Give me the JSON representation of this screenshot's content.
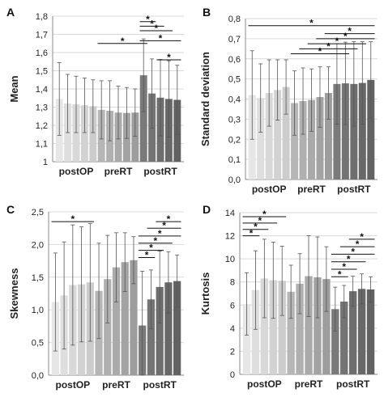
{
  "chart_data": [
    {
      "type": "bar",
      "panel_label": "A",
      "ylabel": "Mean",
      "ylim": [
        1.0,
        1.8
      ],
      "yticks": [
        1.0,
        1.1,
        1.2,
        1.3,
        1.4,
        1.5,
        1.6,
        1.7,
        1.8
      ],
      "tick_labels": [
        "1",
        "1,1",
        "1,2",
        "1,3",
        "1,4",
        "1,5",
        "1,6",
        "1,7",
        "1,8"
      ],
      "grid": true,
      "groups": [
        "postOP",
        "preRT",
        "postRT"
      ],
      "bars_per_group": 5,
      "values": [
        1.345,
        1.32,
        1.315,
        1.31,
        1.305,
        1.285,
        1.28,
        1.27,
        1.268,
        1.27,
        1.475,
        1.375,
        1.352,
        1.345,
        1.34
      ],
      "errors": [
        0.2,
        0.16,
        0.155,
        0.15,
        0.145,
        0.16,
        0.165,
        0.145,
        0.14,
        0.13,
        0.2,
        0.19,
        0.21,
        0.21,
        0.19
      ],
      "bar_colors": [
        "#e6e6e6",
        "#dedede",
        "#d8d8d8",
        "#d2d2d2",
        "#cccccc",
        "#b6b6b6",
        "#b0b0b0",
        "#aaaaaa",
        "#a3a3a3",
        "#9d9d9d",
        "#7a7a7a",
        "#747474",
        "#6e6e6e",
        "#686868",
        "#626262"
      ],
      "significance": [
        {
          "from": 5,
          "to": 10,
          "y": 1.65,
          "label": "*"
        },
        {
          "from": 10,
          "to": 11,
          "y": 1.77,
          "label": "*"
        },
        {
          "from": 10,
          "to": 12,
          "y": 1.745,
          "label": "*"
        },
        {
          "from": 10,
          "to": 13,
          "y": 1.72,
          "label": "*"
        },
        {
          "from": 10,
          "to": 14,
          "y": 1.665,
          "label": "*"
        },
        {
          "from": 12,
          "to": 14,
          "y": 1.56,
          "label": "*"
        }
      ]
    },
    {
      "type": "bar",
      "panel_label": "B",
      "ylabel": "Standard deviation",
      "ylim": [
        0.0,
        0.8
      ],
      "yticks": [
        0.0,
        0.1,
        0.2,
        0.3,
        0.4,
        0.5,
        0.6,
        0.7,
        0.8
      ],
      "tick_labels": [
        "0,0",
        "0,1",
        "0,2",
        "0,3",
        "0,4",
        "0,5",
        "0,6",
        "0,7",
        "0,8"
      ],
      "grid": true,
      "groups": [
        "postOP",
        "preRT",
        "postRT"
      ],
      "bars_per_group": 5,
      "values": [
        0.42,
        0.405,
        0.43,
        0.445,
        0.46,
        0.38,
        0.39,
        0.395,
        0.41,
        0.43,
        0.475,
        0.478,
        0.475,
        0.48,
        0.495
      ],
      "errors": [
        0.22,
        0.17,
        0.165,
        0.15,
        0.135,
        0.16,
        0.165,
        0.155,
        0.15,
        0.13,
        0.2,
        0.205,
        0.21,
        0.205,
        0.19
      ],
      "bar_colors": [
        "#e6e6e6",
        "#dedede",
        "#d8d8d8",
        "#d2d2d2",
        "#cccccc",
        "#b6b6b6",
        "#b0b0b0",
        "#aaaaaa",
        "#a3a3a3",
        "#9d9d9d",
        "#7a7a7a",
        "#747474",
        "#6e6e6e",
        "#686868",
        "#626262"
      ],
      "significance": [
        {
          "from": 0,
          "to": 14,
          "y": 0.765,
          "label": "*"
        },
        {
          "from": 9,
          "to": 14,
          "y": 0.725,
          "label": "*"
        },
        {
          "from": 8,
          "to": 14,
          "y": 0.7,
          "label": "*"
        },
        {
          "from": 7,
          "to": 13,
          "y": 0.675,
          "label": "*"
        },
        {
          "from": 6,
          "to": 12,
          "y": 0.65,
          "label": "*"
        },
        {
          "from": 5,
          "to": 11,
          "y": 0.625,
          "label": "*"
        }
      ]
    },
    {
      "type": "bar",
      "panel_label": "C",
      "ylabel": "Skewness",
      "ylim": [
        0.0,
        2.5
      ],
      "yticks": [
        0.0,
        0.5,
        1.0,
        1.5,
        2.0,
        2.5
      ],
      "tick_labels": [
        "0,0",
        "0,5",
        "1,0",
        "1,5",
        "2,0",
        "2,5"
      ],
      "grid": true,
      "groups": [
        "postOP",
        "preRT",
        "postRT"
      ],
      "bars_per_group": 5,
      "values": [
        1.12,
        1.22,
        1.38,
        1.39,
        1.42,
        1.29,
        1.47,
        1.65,
        1.73,
        1.76,
        0.76,
        1.16,
        1.35,
        1.42,
        1.44
      ],
      "errors": [
        0.75,
        0.82,
        0.92,
        0.88,
        0.9,
        0.73,
        0.67,
        0.53,
        0.45,
        0.36,
        0.83,
        0.45,
        0.55,
        0.47,
        0.4
      ],
      "bar_colors": [
        "#e6e6e6",
        "#dedede",
        "#d8d8d8",
        "#d2d2d2",
        "#cccccc",
        "#b6b6b6",
        "#b0b0b0",
        "#aaaaaa",
        "#a3a3a3",
        "#9d9d9d",
        "#7a7a7a",
        "#747474",
        "#6e6e6e",
        "#686868",
        "#626262"
      ],
      "significance": [
        {
          "from": 0,
          "to": 4,
          "y": 2.35,
          "label": "*"
        },
        {
          "from": 12,
          "to": 14,
          "y": 2.35,
          "label": "*"
        },
        {
          "from": 11,
          "to": 14,
          "y": 2.25,
          "label": "*"
        },
        {
          "from": 10,
          "to": 14,
          "y": 2.13,
          "label": "*"
        },
        {
          "from": 10,
          "to": 13,
          "y": 2.02,
          "label": "*"
        },
        {
          "from": 10,
          "to": 12,
          "y": 1.91,
          "label": "*"
        },
        {
          "from": 10,
          "to": 11,
          "y": 1.8,
          "label": "*"
        }
      ]
    },
    {
      "type": "bar",
      "panel_label": "D",
      "ylabel": "Kurtosis",
      "ylim": [
        0,
        14
      ],
      "yticks": [
        0,
        2,
        4,
        6,
        8,
        10,
        12,
        14
      ],
      "tick_labels": [
        "0",
        "2",
        "4",
        "6",
        "8",
        "10",
        "12",
        "14"
      ],
      "grid": true,
      "groups": [
        "postOP",
        "preRT",
        "postRT"
      ],
      "bars_per_group": 5,
      "values": [
        6.1,
        7.3,
        8.3,
        8.15,
        8.1,
        7.15,
        7.85,
        8.5,
        8.4,
        8.25,
        5.65,
        6.3,
        7.2,
        7.4,
        7.35
      ],
      "errors": [
        2.7,
        3.4,
        3.4,
        3.3,
        3.0,
        2.3,
        2.6,
        3.5,
        3.5,
        2.8,
        1.9,
        1.4,
        1.3,
        1.3,
        1.1
      ],
      "bar_colors": [
        "#e6e6e6",
        "#dedede",
        "#d8d8d8",
        "#d2d2d2",
        "#cccccc",
        "#b6b6b6",
        "#b0b0b0",
        "#aaaaaa",
        "#a3a3a3",
        "#9d9d9d",
        "#7a7a7a",
        "#747474",
        "#6e6e6e",
        "#686868",
        "#626262"
      ],
      "significance": [
        {
          "from": 0,
          "to": 1,
          "y": 12.0,
          "label": "*"
        },
        {
          "from": 0,
          "to": 2,
          "y": 12.55,
          "label": "*"
        },
        {
          "from": 0,
          "to": 3,
          "y": 13.1,
          "label": "*"
        },
        {
          "from": 0,
          "to": 4,
          "y": 13.65,
          "label": "*"
        },
        {
          "from": 12,
          "to": 14,
          "y": 11.7,
          "label": "*"
        },
        {
          "from": 11,
          "to": 14,
          "y": 11.05,
          "label": "*"
        },
        {
          "from": 10,
          "to": 14,
          "y": 10.4,
          "label": "*"
        },
        {
          "from": 10,
          "to": 13,
          "y": 9.75,
          "label": "*"
        },
        {
          "from": 10,
          "to": 12,
          "y": 9.1,
          "label": "*"
        },
        {
          "from": 10,
          "to": 11,
          "y": 8.45,
          "label": "*"
        }
      ]
    }
  ]
}
